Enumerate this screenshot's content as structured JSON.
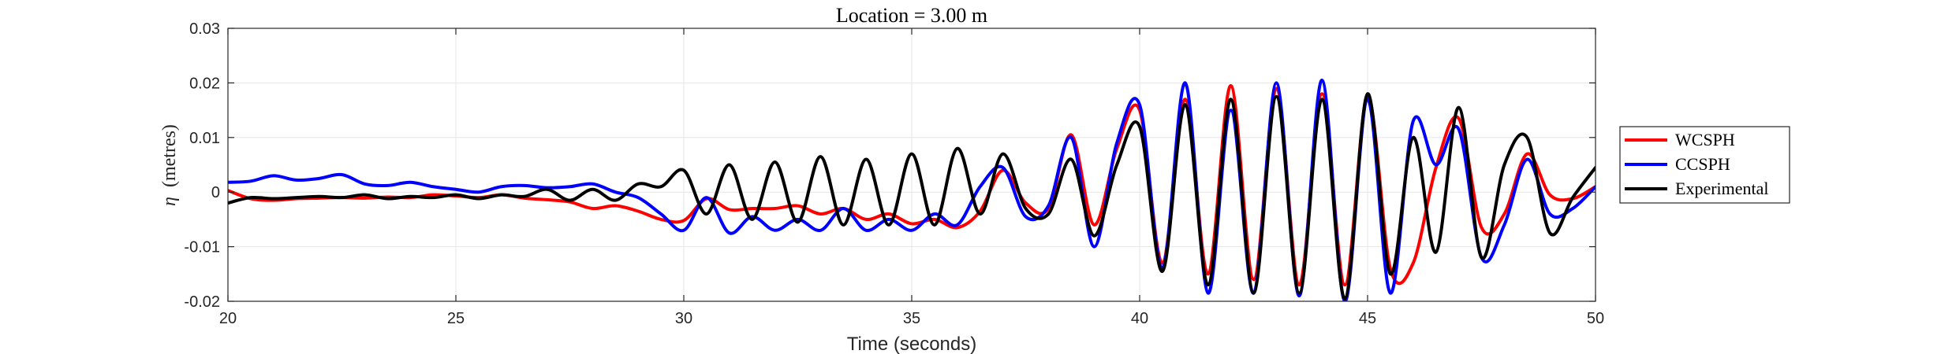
{
  "chart_data": {
    "type": "line",
    "title": "Location = 3.00 m",
    "xlabel": "Time (seconds)",
    "ylabel": "(metres)",
    "ylabel_symbol": "η",
    "xlim": [
      20,
      50
    ],
    "ylim": [
      -0.02,
      0.03
    ],
    "xticks": [
      20,
      25,
      30,
      35,
      40,
      45,
      50
    ],
    "yticks": [
      -0.02,
      -0.01,
      0,
      0.01,
      0.02,
      0.03
    ],
    "xtick_labels": [
      "20",
      "25",
      "30",
      "35",
      "40",
      "45",
      "50"
    ],
    "ytick_labels": [
      "-0.02",
      "-0.01",
      "0",
      "0.01",
      "0.02",
      "0.03"
    ],
    "grid": true,
    "legend_position": "outside-right",
    "series": [
      {
        "name": "WCSPH",
        "color": "#ff0000",
        "x": [
          20.0,
          20.5,
          21.0,
          21.5,
          22.0,
          22.5,
          23.0,
          23.5,
          24.0,
          24.5,
          25.0,
          25.5,
          26.0,
          26.5,
          27.0,
          27.5,
          28.0,
          28.5,
          29.0,
          29.5,
          30.0,
          30.5,
          31.0,
          31.5,
          32.0,
          32.5,
          33.0,
          33.5,
          34.0,
          34.5,
          35.0,
          35.5,
          36.0,
          36.5,
          37.0,
          37.5,
          38.0,
          38.5,
          39.0,
          39.5,
          40.0,
          40.5,
          41.0,
          41.5,
          42.0,
          42.5,
          43.0,
          43.5,
          44.0,
          44.5,
          45.0,
          45.5,
          46.0,
          46.5,
          47.0,
          47.5,
          48.0,
          48.5,
          49.0,
          49.5,
          50.0
        ],
        "y": [
          0.0003,
          -0.0012,
          -0.0015,
          -0.0012,
          -0.0011,
          -0.001,
          -0.0011,
          -0.0009,
          -0.001,
          -0.0005,
          -0.0007,
          -0.001,
          -0.0005,
          -0.0011,
          -0.0014,
          -0.0018,
          -0.003,
          -0.0025,
          -0.0035,
          -0.005,
          -0.0052,
          -0.0012,
          -0.0032,
          -0.003,
          -0.003,
          -0.0025,
          -0.004,
          -0.003,
          -0.005,
          -0.004,
          -0.0058,
          -0.005,
          -0.0065,
          -0.0035,
          0.004,
          -0.002,
          -0.003,
          0.0105,
          -0.006,
          0.008,
          0.015,
          -0.013,
          0.017,
          -0.015,
          0.0195,
          -0.016,
          0.019,
          -0.017,
          0.018,
          -0.017,
          0.0175,
          -0.014,
          -0.013,
          0.0045,
          0.0135,
          -0.0065,
          -0.004,
          0.007,
          -0.0005,
          -0.0012,
          0.001
        ]
      },
      {
        "name": "CCSPH",
        "color": "#0000ff",
        "x": [
          20.0,
          20.5,
          21.0,
          21.5,
          22.0,
          22.5,
          23.0,
          23.5,
          24.0,
          24.5,
          25.0,
          25.5,
          26.0,
          26.5,
          27.0,
          27.5,
          28.0,
          28.5,
          29.0,
          29.5,
          30.0,
          30.5,
          31.0,
          31.5,
          32.0,
          32.5,
          33.0,
          33.5,
          34.0,
          34.5,
          35.0,
          35.5,
          36.0,
          36.5,
          37.0,
          37.5,
          38.0,
          38.5,
          39.0,
          39.5,
          40.0,
          40.5,
          41.0,
          41.5,
          42.0,
          42.5,
          43.0,
          43.5,
          44.0,
          44.5,
          45.0,
          45.5,
          46.0,
          46.5,
          47.0,
          47.5,
          48.0,
          48.5,
          49.0,
          49.5,
          50.0
        ],
        "y": [
          0.0018,
          0.002,
          0.003,
          0.0022,
          0.0025,
          0.0032,
          0.0015,
          0.0012,
          0.0018,
          0.001,
          0.0005,
          0.0,
          0.001,
          0.0012,
          0.0008,
          0.001,
          0.0015,
          0.0,
          -0.001,
          -0.004,
          -0.007,
          -0.001,
          -0.0075,
          -0.0045,
          -0.007,
          -0.005,
          -0.007,
          -0.003,
          -0.007,
          -0.005,
          -0.007,
          -0.004,
          -0.006,
          0.001,
          0.0045,
          -0.0045,
          -0.0025,
          0.01,
          -0.01,
          0.009,
          0.016,
          -0.014,
          0.02,
          -0.0185,
          0.015,
          -0.0185,
          0.02,
          -0.019,
          0.0205,
          -0.02,
          0.017,
          -0.0185,
          0.013,
          0.005,
          0.0115,
          -0.012,
          -0.006,
          0.006,
          -0.004,
          -0.003,
          0.001
        ]
      },
      {
        "name": "Experimental",
        "color": "#000000",
        "x": [
          20.0,
          20.5,
          21.0,
          21.5,
          22.0,
          22.5,
          23.0,
          23.5,
          24.0,
          24.5,
          25.0,
          25.5,
          26.0,
          26.5,
          27.0,
          27.5,
          28.0,
          28.5,
          29.0,
          29.5,
          30.0,
          30.5,
          31.0,
          31.5,
          32.0,
          32.5,
          33.0,
          33.5,
          34.0,
          34.5,
          35.0,
          35.5,
          36.0,
          36.5,
          37.0,
          37.5,
          38.0,
          38.5,
          39.0,
          39.5,
          40.0,
          40.5,
          41.0,
          41.5,
          42.0,
          42.5,
          43.0,
          43.5,
          44.0,
          44.5,
          45.0,
          45.5,
          46.0,
          46.5,
          47.0,
          47.5,
          48.0,
          48.5,
          49.0,
          49.5,
          50.0
        ],
        "y": [
          -0.002,
          -0.001,
          -0.0012,
          -0.001,
          -0.0008,
          -0.001,
          -0.0005,
          -0.0012,
          -0.0008,
          -0.001,
          -0.0005,
          -0.0012,
          -0.0005,
          -0.0008,
          0.0005,
          -0.0015,
          0.0005,
          -0.0015,
          0.0015,
          0.001,
          0.004,
          -0.004,
          0.005,
          -0.005,
          0.0055,
          -0.0055,
          0.0065,
          -0.006,
          0.006,
          -0.006,
          0.007,
          -0.006,
          0.008,
          -0.004,
          0.007,
          -0.003,
          -0.004,
          0.006,
          -0.008,
          0.005,
          0.012,
          -0.0145,
          0.016,
          -0.017,
          0.017,
          -0.0185,
          0.0175,
          -0.0185,
          0.017,
          -0.0195,
          0.018,
          -0.015,
          0.01,
          -0.011,
          0.0155,
          -0.012,
          0.005,
          0.01,
          -0.0075,
          -0.001,
          0.0045
        ]
      }
    ]
  }
}
